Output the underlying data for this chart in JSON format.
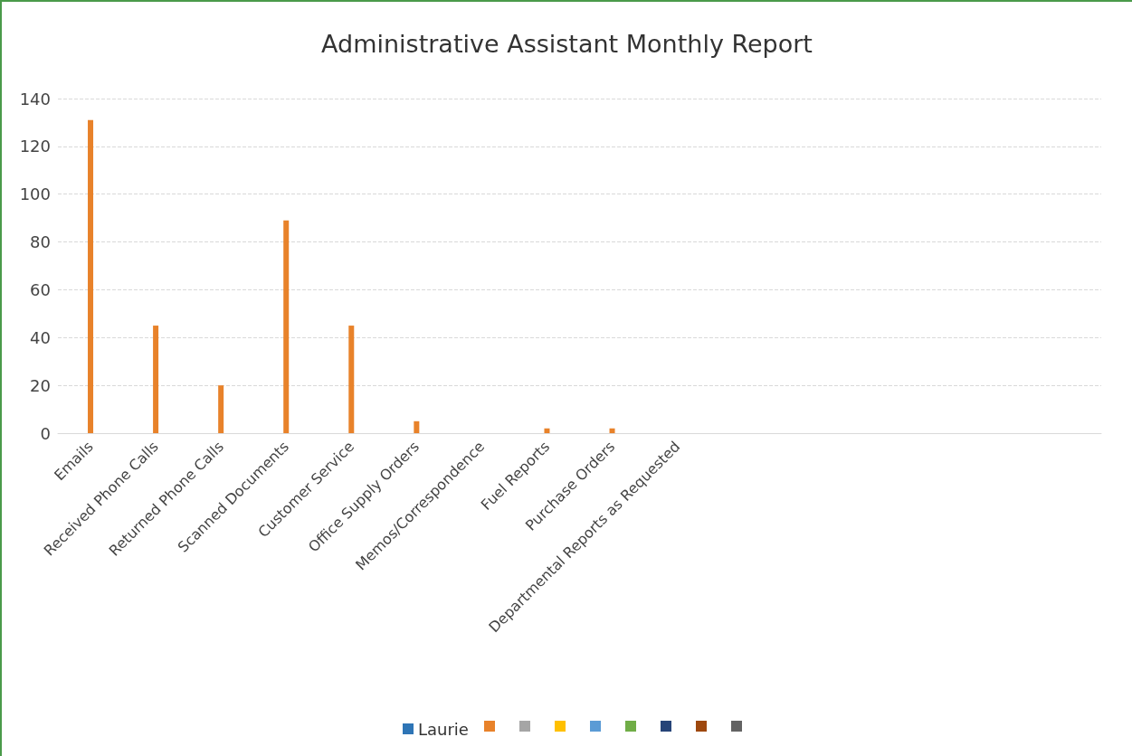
{
  "chart_data": {
    "type": "bar",
    "title": "Administrative Assistant Monthly Report",
    "categories": [
      "Emails",
      "Received Phone Calls",
      "Returned Phone Calls",
      "Scanned Documents",
      "Customer Service",
      "Office Supply Orders",
      "Memos/Correspondence",
      "Fuel Reports",
      "Purchase Orders",
      "Departmental Reports as Requested",
      null,
      null,
      null,
      null,
      null,
      null
    ],
    "series": [
      {
        "name": "Laurie",
        "color": "#2e75b6",
        "values": [
          null,
          null,
          null,
          null,
          null,
          null,
          null,
          null,
          null,
          null,
          null,
          null,
          null,
          null,
          null,
          null
        ]
      },
      {
        "color": "#e8822a",
        "values": [
          131,
          45,
          20,
          89,
          45,
          5,
          null,
          2,
          2,
          null,
          null,
          null,
          null,
          null,
          null,
          null
        ]
      },
      {
        "color": "#a5a5a5",
        "values": [
          null,
          null,
          null,
          null,
          null,
          null,
          null,
          null,
          null,
          null,
          null,
          null,
          null,
          null,
          null,
          null
        ]
      },
      {
        "color": "#ffc000",
        "values": [
          null,
          null,
          null,
          null,
          null,
          null,
          null,
          null,
          null,
          null,
          null,
          null,
          null,
          null,
          null,
          null
        ]
      },
      {
        "color": "#5b9bd5",
        "values": [
          null,
          null,
          null,
          null,
          null,
          null,
          null,
          null,
          null,
          null,
          null,
          null,
          null,
          null,
          null,
          null
        ]
      },
      {
        "color": "#70ad47",
        "values": [
          null,
          null,
          null,
          null,
          null,
          null,
          null,
          null,
          null,
          null,
          null,
          null,
          null,
          null,
          null,
          null
        ]
      },
      {
        "color": "#264478",
        "values": [
          null,
          null,
          null,
          null,
          null,
          null,
          null,
          null,
          null,
          null,
          null,
          null,
          null,
          null,
          null,
          null
        ]
      },
      {
        "color": "#9e480e",
        "values": [
          null,
          null,
          null,
          null,
          null,
          null,
          null,
          null,
          null,
          null,
          null,
          null,
          null,
          null,
          null,
          null
        ]
      },
      {
        "color": "#636363",
        "values": [
          null,
          null,
          null,
          null,
          null,
          null,
          null,
          null,
          null,
          null,
          null,
          null,
          null,
          null,
          null,
          null
        ]
      }
    ],
    "ylim": [
      0,
      140
    ],
    "yticks": [
      0,
      20,
      40,
      60,
      80,
      100,
      120,
      140
    ],
    "grid": "y",
    "legend": "bottom"
  }
}
